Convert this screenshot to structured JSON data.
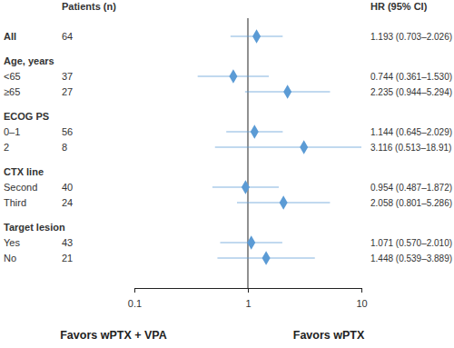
{
  "chart_data": {
    "type": "forest",
    "columns": [
      "Patients (n)",
      "HR (95% CI)"
    ],
    "rows": [
      {
        "label": "All",
        "patients": 64,
        "hr": 1.193,
        "lower": 0.703,
        "upper": 2.026,
        "hr_label": "1.193 (0.703–2.026)"
      },
      {
        "heading": "Age, years"
      },
      {
        "label": "<65",
        "patients": 37,
        "hr": 0.744,
        "lower": 0.361,
        "upper": 1.53,
        "hr_label": "0.744 (0.361–1.530)"
      },
      {
        "label": "≥65",
        "patients": 27,
        "hr": 2.235,
        "lower": 0.944,
        "upper": 5.294,
        "hr_label": "2.235 (0.944–5.294)"
      },
      {
        "heading": "ECOG PS"
      },
      {
        "label": "0–1",
        "patients": 56,
        "hr": 1.144,
        "lower": 0.645,
        "upper": 2.029,
        "hr_label": "1.144 (0.645–2.029)"
      },
      {
        "label": "2",
        "patients": 8,
        "hr": 3.116,
        "lower": 0.513,
        "upper": 18.91,
        "hr_label": "3.116 (0.513–18.91)"
      },
      {
        "heading": "CTX line"
      },
      {
        "label": "Second",
        "patients": 40,
        "hr": 0.954,
        "lower": 0.487,
        "upper": 1.872,
        "hr_label": "0.954 (0.487–1.872)"
      },
      {
        "label": "Third",
        "patients": 24,
        "hr": 2.058,
        "lower": 0.801,
        "upper": 5.286,
        "hr_label": "2.058 (0.801–5.286)"
      },
      {
        "heading": "Target lesion"
      },
      {
        "label": "Yes",
        "patients": 43,
        "hr": 1.071,
        "lower": 0.57,
        "upper": 2.01,
        "hr_label": "1.071 (0.570–2.010)"
      },
      {
        "label": "No",
        "patients": 21,
        "hr": 1.448,
        "lower": 0.539,
        "upper": 3.889,
        "hr_label": "1.448 (0.539–3.889)"
      }
    ],
    "reference_line": 1,
    "log": "x",
    "xlim": [
      0.1,
      10
    ],
    "xticks": [
      0.1,
      1,
      10
    ],
    "x_labels": [
      "Favors wPTX + VPA",
      "Favors wPTX"
    ],
    "color": "#5b9bd5"
  }
}
